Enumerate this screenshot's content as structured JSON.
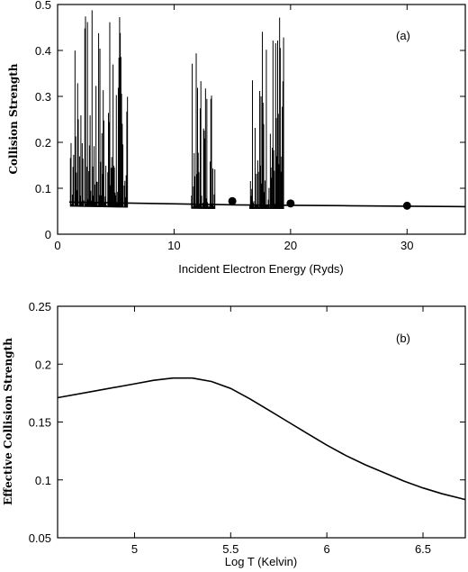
{
  "chart_data": [
    {
      "type": "line",
      "panel_label": "(a)",
      "xlabel": "Incident Electron Energy (Ryds)",
      "ylabel": "Collision Strength",
      "xlim": [
        0,
        35
      ],
      "ylim": [
        0,
        0.5
      ],
      "xticks": [
        0,
        10,
        20,
        30
      ],
      "yticks": [
        0,
        0.1,
        0.2,
        0.3,
        0.4,
        0.5
      ],
      "tick_labels_x": [
        "0",
        "10",
        "20",
        "30"
      ],
      "tick_labels_y": [
        "0",
        "0.1",
        "0.2",
        "0.3",
        "0.4",
        "0.5"
      ],
      "grid": false,
      "series": [
        {
          "x": [
            1.0,
            15.0,
            20.0,
            25.0,
            30.0,
            35.0
          ],
          "y": [
            0.07,
            0.064,
            0.063,
            0.062,
            0.061,
            0.06
          ]
        },
        {
          "markers": true,
          "x": [
            15.0,
            20.0,
            30.0
          ],
          "y": [
            0.072,
            0.067,
            0.062
          ]
        }
      ],
      "resonance_regions": [
        {
          "x": [
            1.1,
            6.0
          ],
          "ymax": 0.5
        },
        {
          "x": [
            11.5,
            13.5
          ],
          "ymax": 0.4
        },
        {
          "x": [
            16.5,
            19.4
          ],
          "ymax": 0.5
        }
      ]
    },
    {
      "type": "line",
      "panel_label": "(b)",
      "xlabel": "Log T (Kelvin)",
      "ylabel": "Effective Collision Strength",
      "xlim": [
        4.6,
        6.72
      ],
      "ylim": [
        0.05,
        0.25
      ],
      "xticks": [
        5,
        5.5,
        6,
        6.5
      ],
      "yticks": [
        0.05,
        0.1,
        0.15,
        0.2,
        0.25
      ],
      "tick_labels_x": [
        "5",
        "5.5",
        "6",
        "6.5"
      ],
      "tick_labels_y": [
        "0.05",
        "0.1",
        "0.15",
        "0.2",
        "0.25"
      ],
      "grid": false,
      "series": [
        {
          "x": [
            4.6,
            4.8,
            5.0,
            5.1,
            5.2,
            5.3,
            5.4,
            5.5,
            5.6,
            5.7,
            5.8,
            5.9,
            6.0,
            6.1,
            6.2,
            6.3,
            6.4,
            6.5,
            6.6,
            6.72
          ],
          "y": [
            0.171,
            0.177,
            0.183,
            0.186,
            0.188,
            0.188,
            0.185,
            0.179,
            0.17,
            0.16,
            0.15,
            0.14,
            0.13,
            0.121,
            0.113,
            0.106,
            0.099,
            0.093,
            0.088,
            0.083
          ]
        }
      ]
    }
  ]
}
